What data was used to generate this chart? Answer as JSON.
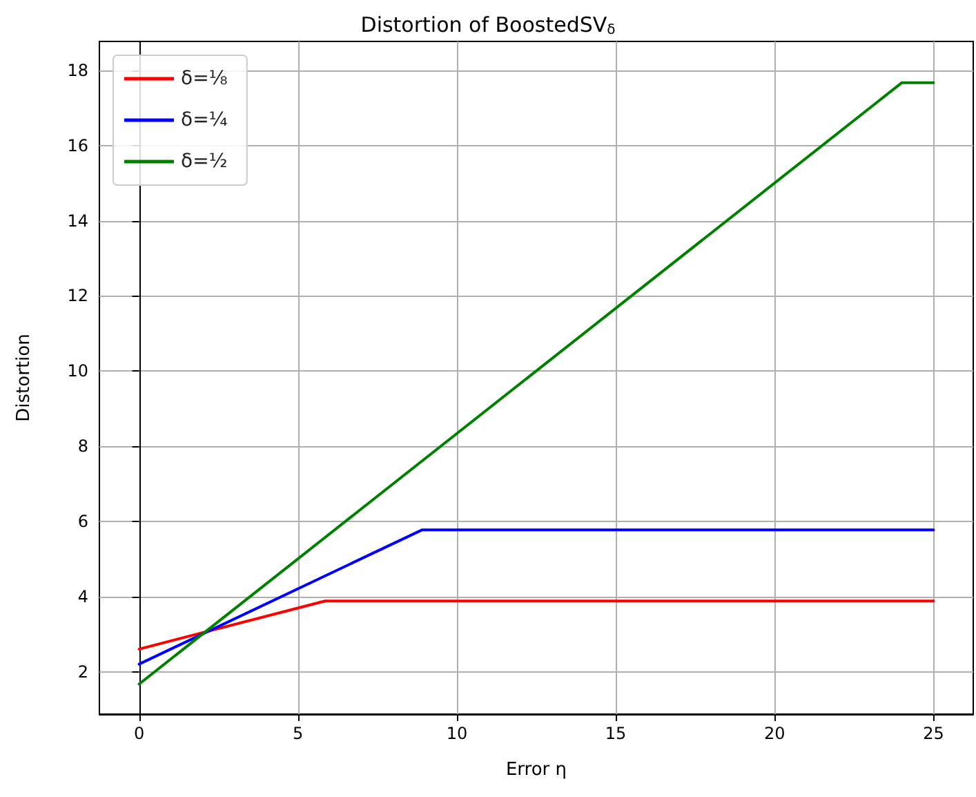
{
  "chart_data": {
    "type": "line",
    "title": "Distortion of BoostedSV$_{δ}$",
    "xlabel": "Error η",
    "ylabel": "Distortion",
    "xlim": [
      -1.25,
      26.25
    ],
    "xticks": [
      0,
      5,
      10,
      15,
      20,
      25
    ],
    "ylim": [
      0.87,
      18.77
    ],
    "yticks": [
      2,
      4,
      6,
      8,
      10,
      12,
      14,
      16,
      18
    ],
    "grid": true,
    "legend": "top left",
    "marker": "none",
    "line_style": "solid",
    "series": [
      {
        "name": "δ=⅛",
        "color": "#ff0000",
        "x": [
          0,
          5.85,
          25
        ],
        "values": [
          2.6,
          3.88,
          3.88
        ]
      },
      {
        "name": "δ=¼",
        "color": "#0000ff",
        "x": [
          0,
          8.9,
          25
        ],
        "values": [
          2.2,
          5.77,
          5.77
        ]
      },
      {
        "name": "δ=½",
        "color": "#008000",
        "x": [
          0,
          24,
          25
        ],
        "values": [
          1.67,
          17.67,
          17.67
        ]
      }
    ]
  }
}
